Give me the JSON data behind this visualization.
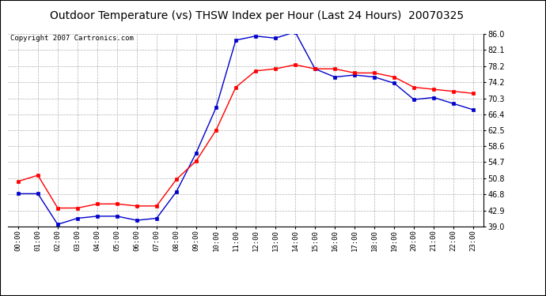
{
  "title": "Outdoor Temperature (vs) THSW Index per Hour (Last 24 Hours)  20070325",
  "copyright": "Copyright 2007 Cartronics.com",
  "hours": [
    "00:00",
    "01:00",
    "02:00",
    "03:00",
    "04:00",
    "05:00",
    "06:00",
    "07:00",
    "08:00",
    "09:00",
    "10:00",
    "11:00",
    "12:00",
    "13:00",
    "14:00",
    "15:00",
    "16:00",
    "17:00",
    "18:00",
    "19:00",
    "20:00",
    "21:00",
    "22:00",
    "23:00"
  ],
  "temp": [
    50.0,
    51.5,
    43.5,
    43.5,
    44.5,
    44.5,
    44.0,
    44.0,
    50.5,
    55.0,
    62.5,
    73.0,
    77.0,
    77.5,
    78.5,
    77.5,
    77.5,
    76.5,
    76.5,
    75.5,
    73.0,
    72.5,
    72.0,
    71.5
  ],
  "thsw": [
    47.0,
    47.0,
    39.5,
    41.0,
    41.5,
    41.5,
    40.5,
    41.0,
    47.5,
    57.0,
    68.0,
    84.5,
    85.5,
    85.0,
    86.5,
    77.5,
    75.5,
    76.0,
    75.5,
    74.0,
    70.0,
    70.5,
    69.0,
    67.5
  ],
  "ylim": [
    39.0,
    86.0
  ],
  "yticks": [
    39.0,
    42.9,
    46.8,
    50.8,
    54.7,
    58.6,
    62.5,
    66.4,
    70.3,
    74.2,
    78.2,
    82.1,
    86.0
  ],
  "temp_color": "#ff0000",
  "thsw_color": "#0000cc",
  "bg_color": "#ffffff",
  "grid_color": "#b0b0b0",
  "title_fontsize": 10,
  "copyright_fontsize": 6.5,
  "border_color": "#000000"
}
